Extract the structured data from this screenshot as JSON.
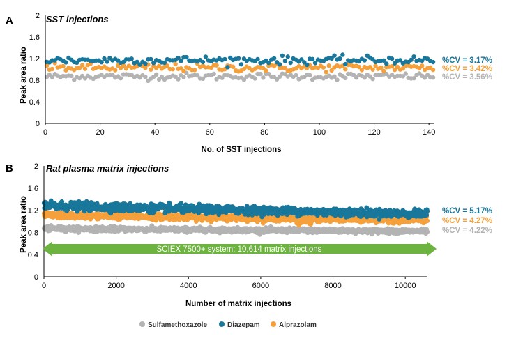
{
  "colors": {
    "sulfamethoxazole": "#b3b3b3",
    "diazepam": "#18779a",
    "alprazolam": "#f5a03b",
    "arrow": "#6db33f",
    "axis": "#000000"
  },
  "legend": [
    {
      "label": "Sulfamethoxazole",
      "color": "#b3b3b3"
    },
    {
      "label": "Diazepam",
      "color": "#18779a"
    },
    {
      "label": "Alprazolam",
      "color": "#f5a03b"
    }
  ],
  "chart_data": [
    {
      "panel": "A",
      "type": "scatter",
      "title": "SST injections",
      "xlabel": "No. of SST injections",
      "ylabel": "Peak area ratio",
      "xlim": [
        0,
        142
      ],
      "ylim": [
        0,
        2
      ],
      "xticks": [
        0,
        20,
        40,
        60,
        80,
        100,
        120,
        140
      ],
      "yticks": [
        0,
        0.4,
        0.8,
        1.2,
        1.6,
        2
      ],
      "n_points": 142,
      "series": [
        {
          "name": "Diazepam",
          "mean": 1.17,
          "cv_percent": 3.17,
          "cv_label": "%CV = 3.17%",
          "color": "#18779a"
        },
        {
          "name": "Alprazolam",
          "mean": 1.03,
          "cv_percent": 3.42,
          "cv_label": "%CV = 3.42%",
          "color": "#f5a03b"
        },
        {
          "name": "Sulfamethoxazole",
          "mean": 0.87,
          "cv_percent": 3.56,
          "cv_label": "%CV = 3.56%",
          "color": "#b3b3b3"
        }
      ]
    },
    {
      "panel": "B",
      "type": "scatter",
      "title": "Rat plasma matrix injections",
      "xlabel": "Number of matrix injections",
      "ylabel": "Peak area ratio",
      "xlim": [
        0,
        10614
      ],
      "ylim": [
        0,
        2
      ],
      "xticks": [
        0,
        2000,
        4000,
        6000,
        8000,
        10000
      ],
      "yticks": [
        0,
        0.4,
        0.8,
        1.2,
        1.6,
        2
      ],
      "n_points": 10614,
      "annotation": "SCIEX 7500+ system: 10,614 matrix injections",
      "series": [
        {
          "name": "Diazepam",
          "mean_start": 1.28,
          "mean_end": 1.13,
          "cv_percent": 5.17,
          "cv_label": "%CV = 5.17%",
          "color": "#18779a"
        },
        {
          "name": "Alprazolam",
          "mean_start": 1.11,
          "mean_end": 1.02,
          "cv_percent": 4.27,
          "cv_label": "%CV = 4.27%",
          "color": "#f5a03b"
        },
        {
          "name": "Sulfamethoxazole",
          "mean_start": 0.87,
          "mean_end": 0.82,
          "cv_percent": 4.22,
          "cv_label": "%CV = 4.22%",
          "color": "#b3b3b3"
        }
      ]
    }
  ]
}
